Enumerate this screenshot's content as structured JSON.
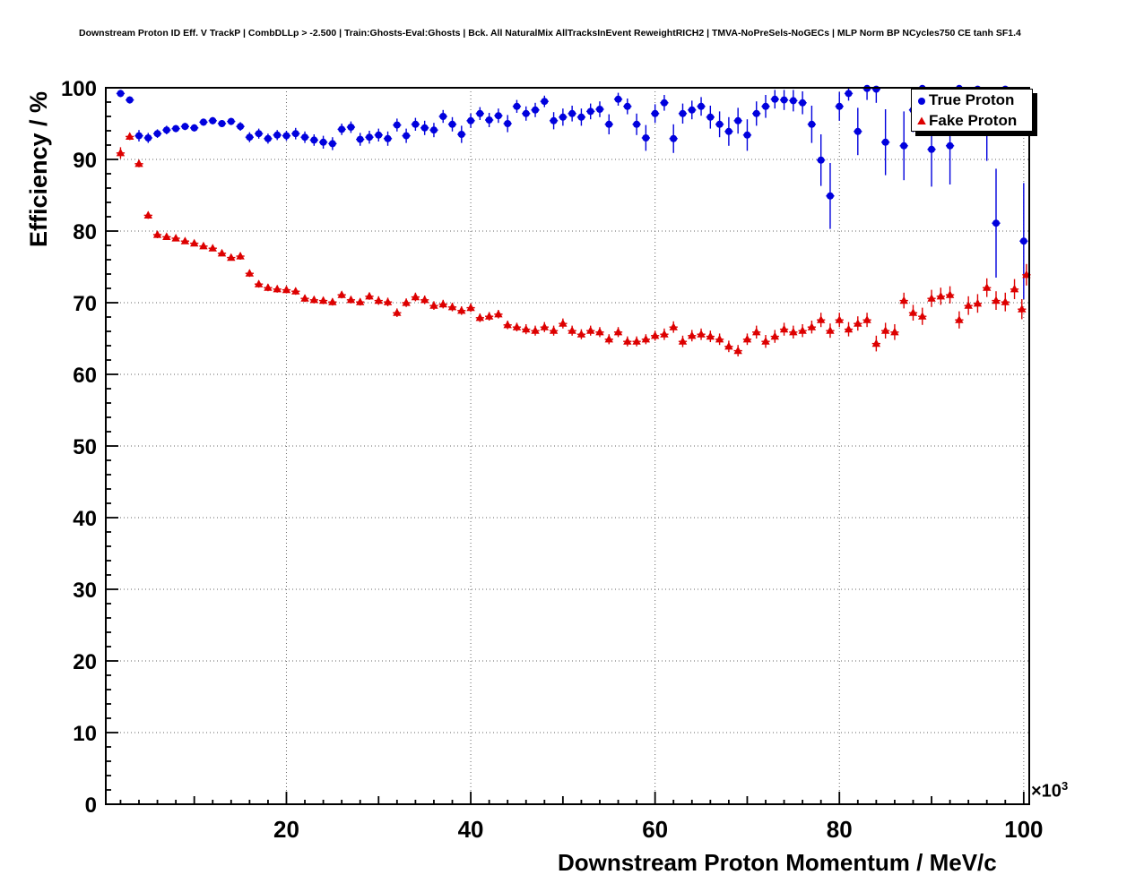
{
  "chart_data": {
    "type": "scatter",
    "title": "Downstream Proton ID Eff. V TrackP | CombDLLp > -2.500 | Train:Ghosts-Eval:Ghosts | Bck. All NaturalMix AllTracksInEvent ReweightRICH2 | TMVA-NoPreSels-NoGECs | MLP Norm BP NCycles750 CE tanh SF1.4",
    "xlabel": "Downstream Proton Momentum / MeV/c",
    "ylabel": "Efficiency / %",
    "x_exponent_base": "×10",
    "x_exponent_power": "3",
    "xlim": [
      0.4,
      100.6
    ],
    "ylim": [
      0,
      100
    ],
    "x_ticks": [
      20,
      40,
      60,
      80,
      100
    ],
    "y_ticks": [
      0,
      10,
      20,
      30,
      40,
      50,
      60,
      70,
      80,
      90,
      100
    ],
    "x_minor_step": 2,
    "y_minor_step": 2,
    "grid": true,
    "legend_position": "top-right",
    "series": [
      {
        "name": "True Proton",
        "marker": "circle",
        "color": "#0000dd",
        "points": [
          [
            2,
            99.2,
            0.5
          ],
          [
            3,
            98.3,
            0.5
          ],
          [
            4,
            93.3,
            0.8
          ],
          [
            5,
            93.0,
            0.7
          ],
          [
            6,
            93.6,
            0.6
          ],
          [
            7,
            94.1,
            0.6
          ],
          [
            8,
            94.3,
            0.5
          ],
          [
            9,
            94.6,
            0.5
          ],
          [
            10,
            94.4,
            0.5
          ],
          [
            11,
            95.2,
            0.5
          ],
          [
            12,
            95.4,
            0.5
          ],
          [
            13,
            95.0,
            0.5
          ],
          [
            14,
            95.3,
            0.5
          ],
          [
            15,
            94.6,
            0.6
          ],
          [
            16,
            93.1,
            0.7
          ],
          [
            17,
            93.6,
            0.7
          ],
          [
            18,
            92.9,
            0.7
          ],
          [
            19,
            93.4,
            0.7
          ],
          [
            20,
            93.3,
            0.7
          ],
          [
            21,
            93.6,
            0.8
          ],
          [
            22,
            93.1,
            0.8
          ],
          [
            23,
            92.7,
            0.8
          ],
          [
            24,
            92.4,
            0.9
          ],
          [
            25,
            92.2,
            0.9
          ],
          [
            26,
            94.2,
            0.8
          ],
          [
            27,
            94.5,
            0.8
          ],
          [
            28,
            92.8,
            0.9
          ],
          [
            29,
            93.1,
            0.9
          ],
          [
            30,
            93.4,
            0.9
          ],
          [
            31,
            92.9,
            1.0
          ],
          [
            32,
            94.8,
            0.9
          ],
          [
            33,
            93.3,
            1.0
          ],
          [
            34,
            94.9,
            0.9
          ],
          [
            35,
            94.4,
            1.0
          ],
          [
            36,
            94.1,
            1.0
          ],
          [
            37,
            96.0,
            0.9
          ],
          [
            38,
            94.9,
            1.0
          ],
          [
            39,
            93.5,
            1.2
          ],
          [
            40,
            95.4,
            1.0
          ],
          [
            41,
            96.4,
            0.9
          ],
          [
            42,
            95.5,
            1.0
          ],
          [
            43,
            96.1,
            1.0
          ],
          [
            44,
            95.0,
            1.2
          ],
          [
            45,
            97.4,
            0.9
          ],
          [
            46,
            96.4,
            1.0
          ],
          [
            47,
            96.9,
            1.0
          ],
          [
            48,
            98.1,
            0.8
          ],
          [
            49,
            95.4,
            1.2
          ],
          [
            50,
            95.9,
            1.2
          ],
          [
            51,
            96.4,
            1.1
          ],
          [
            52,
            95.9,
            1.2
          ],
          [
            53,
            96.7,
            1.1
          ],
          [
            54,
            97.0,
            1.1
          ],
          [
            55,
            94.9,
            1.4
          ],
          [
            56,
            98.4,
            0.9
          ],
          [
            57,
            97.4,
            1.1
          ],
          [
            58,
            94.9,
            1.5
          ],
          [
            59,
            93.0,
            1.8
          ],
          [
            60,
            96.4,
            1.3
          ],
          [
            61,
            97.9,
            1.1
          ],
          [
            62,
            92.9,
            2.0
          ],
          [
            63,
            96.4,
            1.4
          ],
          [
            64,
            96.9,
            1.3
          ],
          [
            65,
            97.4,
            1.3
          ],
          [
            66,
            95.9,
            1.6
          ],
          [
            67,
            94.9,
            1.8
          ],
          [
            68,
            93.9,
            2.0
          ],
          [
            69,
            95.4,
            1.8
          ],
          [
            70,
            93.4,
            2.2
          ],
          [
            71,
            96.4,
            1.7
          ],
          [
            72,
            97.4,
            1.6
          ],
          [
            73,
            98.4,
            1.3
          ],
          [
            74,
            98.3,
            1.4
          ],
          [
            75,
            98.2,
            1.5
          ],
          [
            76,
            97.9,
            1.6
          ],
          [
            77,
            94.9,
            2.6
          ],
          [
            78,
            89.9,
            3.6
          ],
          [
            79,
            84.9,
            4.6
          ],
          [
            80,
            97.4,
            2.0
          ],
          [
            81,
            99.2,
            1.0
          ],
          [
            82,
            93.9,
            3.3
          ],
          [
            83,
            99.9,
            1.6
          ],
          [
            84,
            99.8,
            1.9
          ],
          [
            85,
            92.4,
            4.6
          ],
          [
            87,
            91.9,
            4.8
          ],
          [
            88,
            96.9,
            3.1
          ],
          [
            89,
            99.9,
            2.6
          ],
          [
            90,
            91.4,
            5.2
          ],
          [
            92,
            91.9,
            5.4
          ],
          [
            93,
            99.9,
            3.1
          ],
          [
            95,
            99.8,
            3.6
          ],
          [
            96,
            94.9,
            5.1
          ],
          [
            97,
            81.1,
            7.6
          ],
          [
            98,
            99.8,
            4.1
          ],
          [
            100,
            78.6,
            8.1
          ]
        ]
      },
      {
        "name": "Fake Proton",
        "marker": "triangle",
        "color": "#dd0000",
        "points": [
          [
            2,
            90.9,
            0.8
          ],
          [
            3,
            93.2,
            0.5
          ],
          [
            4,
            89.4,
            0.5
          ],
          [
            5,
            82.2,
            0.5
          ],
          [
            6,
            79.5,
            0.5
          ],
          [
            7,
            79.2,
            0.4
          ],
          [
            8,
            79.0,
            0.4
          ],
          [
            9,
            78.6,
            0.4
          ],
          [
            10,
            78.3,
            0.4
          ],
          [
            11,
            77.9,
            0.4
          ],
          [
            12,
            77.6,
            0.4
          ],
          [
            13,
            76.9,
            0.4
          ],
          [
            14,
            76.3,
            0.4
          ],
          [
            15,
            76.5,
            0.5
          ],
          [
            16,
            74.1,
            0.5
          ],
          [
            17,
            72.6,
            0.5
          ],
          [
            18,
            72.1,
            0.5
          ],
          [
            19,
            71.9,
            0.5
          ],
          [
            20,
            71.8,
            0.5
          ],
          [
            21,
            71.6,
            0.5
          ],
          [
            22,
            70.6,
            0.5
          ],
          [
            23,
            70.4,
            0.5
          ],
          [
            24,
            70.3,
            0.5
          ],
          [
            25,
            70.1,
            0.5
          ],
          [
            26,
            71.1,
            0.5
          ],
          [
            27,
            70.4,
            0.5
          ],
          [
            28,
            70.1,
            0.5
          ],
          [
            29,
            70.9,
            0.5
          ],
          [
            30,
            70.3,
            0.6
          ],
          [
            31,
            70.1,
            0.6
          ],
          [
            32,
            68.6,
            0.6
          ],
          [
            33,
            70.0,
            0.6
          ],
          [
            34,
            70.8,
            0.6
          ],
          [
            35,
            70.4,
            0.6
          ],
          [
            36,
            69.6,
            0.6
          ],
          [
            37,
            69.8,
            0.6
          ],
          [
            38,
            69.4,
            0.6
          ],
          [
            39,
            68.9,
            0.6
          ],
          [
            40,
            69.3,
            0.6
          ],
          [
            41,
            67.9,
            0.6
          ],
          [
            42,
            68.1,
            0.6
          ],
          [
            43,
            68.4,
            0.6
          ],
          [
            44,
            66.9,
            0.6
          ],
          [
            45,
            66.6,
            0.6
          ],
          [
            46,
            66.3,
            0.7
          ],
          [
            47,
            66.1,
            0.7
          ],
          [
            48,
            66.6,
            0.7
          ],
          [
            49,
            66.1,
            0.7
          ],
          [
            50,
            67.1,
            0.7
          ],
          [
            51,
            66.1,
            0.7
          ],
          [
            52,
            65.6,
            0.7
          ],
          [
            53,
            66.1,
            0.7
          ],
          [
            54,
            65.9,
            0.7
          ],
          [
            55,
            64.9,
            0.7
          ],
          [
            56,
            65.9,
            0.7
          ],
          [
            57,
            64.6,
            0.7
          ],
          [
            58,
            64.6,
            0.7
          ],
          [
            59,
            64.9,
            0.7
          ],
          [
            60,
            65.4,
            0.7
          ],
          [
            61,
            65.6,
            0.8
          ],
          [
            62,
            66.6,
            0.8
          ],
          [
            63,
            64.6,
            0.8
          ],
          [
            64,
            65.4,
            0.8
          ],
          [
            65,
            65.6,
            0.8
          ],
          [
            66,
            65.3,
            0.8
          ],
          [
            67,
            64.9,
            0.8
          ],
          [
            68,
            63.9,
            0.8
          ],
          [
            69,
            63.3,
            0.8
          ],
          [
            70,
            64.9,
            0.8
          ],
          [
            71,
            65.9,
            0.9
          ],
          [
            72,
            64.6,
            0.9
          ],
          [
            73,
            65.3,
            0.9
          ],
          [
            74,
            66.3,
            0.9
          ],
          [
            75,
            65.9,
            0.9
          ],
          [
            76,
            66.1,
            0.9
          ],
          [
            77,
            66.6,
            0.9
          ],
          [
            78,
            67.6,
            1.0
          ],
          [
            79,
            66.1,
            1.0
          ],
          [
            80,
            67.6,
            1.0
          ],
          [
            81,
            66.3,
            1.0
          ],
          [
            82,
            67.1,
            1.0
          ],
          [
            83,
            67.6,
            1.0
          ],
          [
            84,
            64.3,
            1.1
          ],
          [
            85,
            66.1,
            1.1
          ],
          [
            86,
            65.9,
            1.1
          ],
          [
            87,
            70.3,
            1.1
          ],
          [
            88,
            68.6,
            1.1
          ],
          [
            89,
            68.1,
            1.2
          ],
          [
            90,
            70.6,
            1.2
          ],
          [
            91,
            70.9,
            1.2
          ],
          [
            92,
            71.1,
            1.2
          ],
          [
            93,
            67.6,
            1.2
          ],
          [
            94,
            69.6,
            1.3
          ],
          [
            95,
            69.9,
            1.3
          ],
          [
            96,
            72.1,
            1.3
          ],
          [
            97,
            70.3,
            1.3
          ],
          [
            98,
            70.1,
            1.3
          ],
          [
            99,
            71.9,
            1.4
          ],
          [
            99.8,
            69.1,
            1.4
          ],
          [
            100.3,
            73.9,
            1.5
          ]
        ]
      }
    ]
  }
}
